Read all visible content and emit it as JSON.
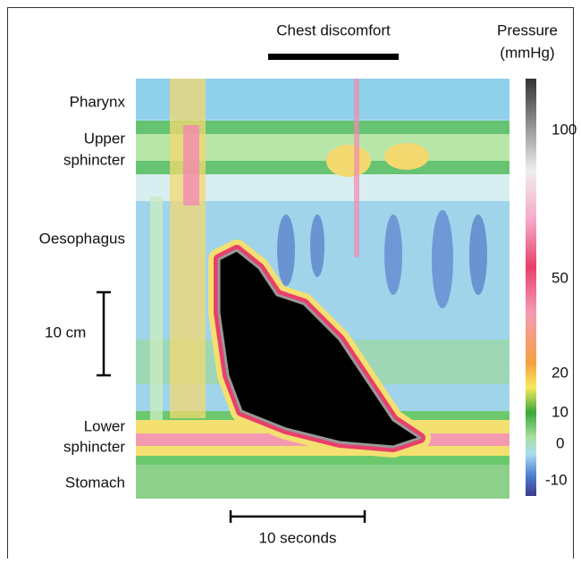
{
  "title": "Chest discomfort",
  "colorbar": {
    "title": [
      "Pressure",
      "(mmHg)"
    ],
    "ticks": [
      100,
      50,
      20,
      10,
      0,
      -10
    ]
  },
  "regions": [
    "Pharynx",
    "Upper",
    "sphincter",
    "Oesophagus",
    "Lower",
    "sphincter",
    "Stomach"
  ],
  "scale_bars": {
    "distance": "10 cm",
    "time": "10 seconds"
  }
}
